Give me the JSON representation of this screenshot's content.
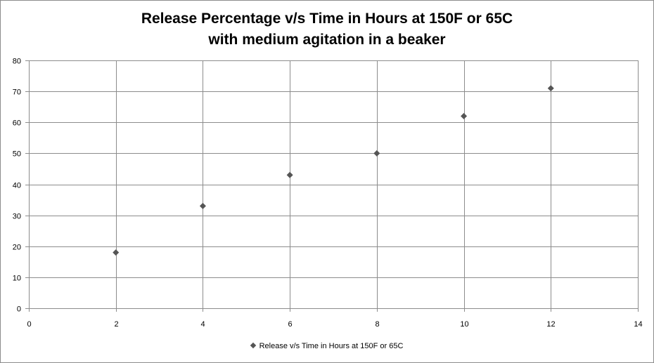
{
  "chart_data": {
    "type": "scatter",
    "title": [
      "Release Percentage v/s Time in Hours at 150F or 65C",
      "with medium agitation in a beaker"
    ],
    "xlabel": "",
    "ylabel": "",
    "xlim": [
      0,
      14
    ],
    "ylim": [
      0,
      80
    ],
    "xticks": [
      0,
      2,
      4,
      6,
      8,
      10,
      12,
      14
    ],
    "yticks": [
      0,
      10,
      20,
      30,
      40,
      50,
      60,
      70,
      80
    ],
    "grid": true,
    "legend_position": "bottom",
    "series": [
      {
        "name": "Release v/s Time  in Hours at 150F or 65C",
        "marker": "diamond",
        "color": "#555555",
        "x": [
          2,
          4,
          6,
          8,
          10,
          12
        ],
        "y": [
          18,
          33,
          43,
          50,
          62,
          71
        ]
      }
    ]
  }
}
